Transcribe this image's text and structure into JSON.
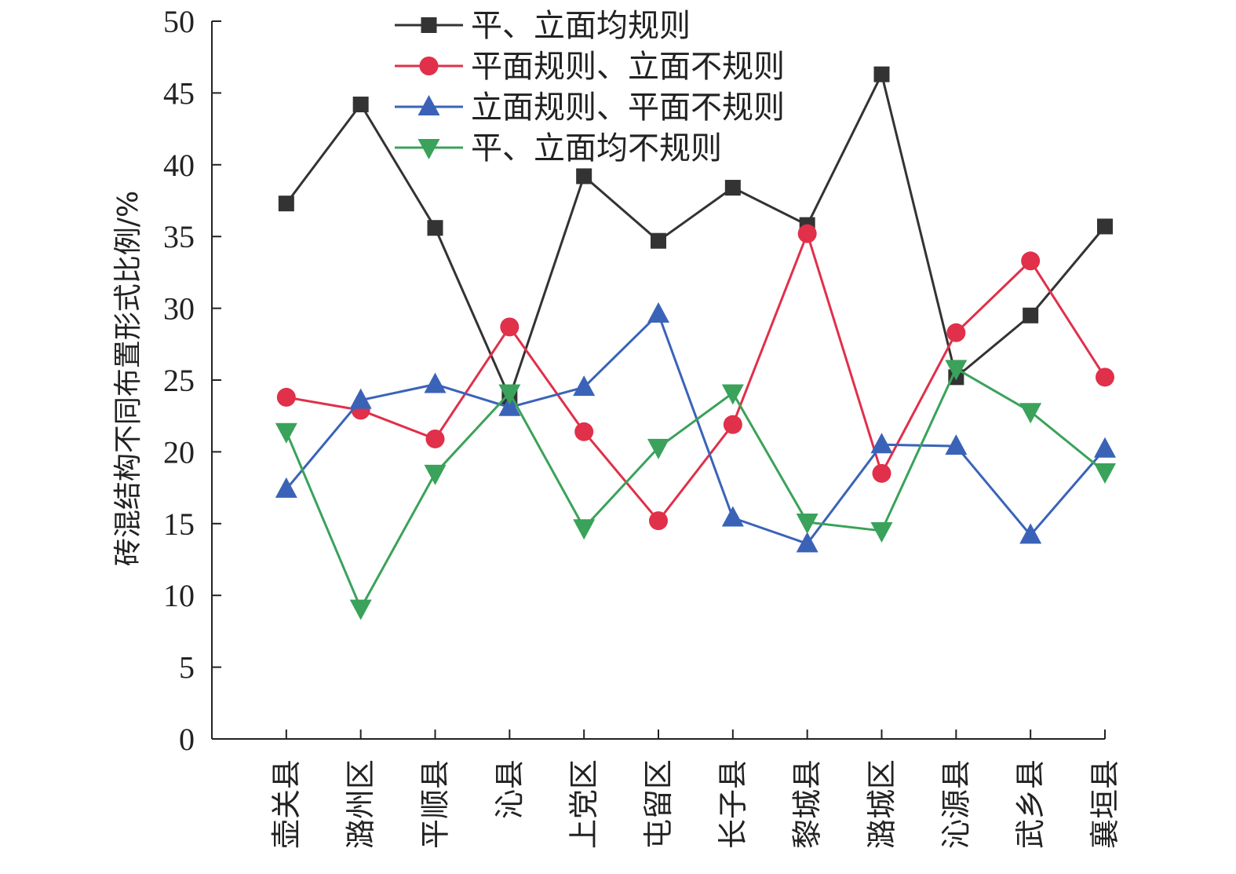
{
  "chart_data": {
    "type": "line",
    "title": "",
    "xlabel": "",
    "ylabel": "砖混结构不同布置形式比例/%",
    "ylim": [
      0,
      50
    ],
    "yticks": [
      "0",
      "5",
      "10",
      "15",
      "20",
      "25",
      "30",
      "35",
      "40",
      "45",
      "50"
    ],
    "categories": [
      "壶关县",
      "潞州区",
      "平顺县",
      "沁县",
      "上党区",
      "屯留区",
      "长子县",
      "黎城县",
      "潞城区",
      "沁源县",
      "武乡县",
      "襄垣县"
    ],
    "legend_position": "top-center",
    "grid": false,
    "series": [
      {
        "name": "平、立面均规则",
        "color": "#333333",
        "marker": "square",
        "values": [
          37.3,
          44.2,
          35.6,
          23.8,
          39.2,
          34.7,
          38.4,
          35.8,
          46.3,
          25.2,
          29.5,
          35.7
        ]
      },
      {
        "name": "平面规则、立面不规则",
        "color": "#e0304a",
        "marker": "circle",
        "values": [
          23.8,
          22.9,
          20.9,
          28.7,
          21.4,
          15.2,
          21.9,
          35.2,
          18.5,
          28.3,
          33.3,
          25.2
        ]
      },
      {
        "name": "立面规则、平面不规则",
        "color": "#3a63b8",
        "marker": "triangle-up",
        "values": [
          17.4,
          23.6,
          24.7,
          23.1,
          24.5,
          29.6,
          15.4,
          13.6,
          20.5,
          20.4,
          14.2,
          20.2
        ]
      },
      {
        "name": "平、立面均不规则",
        "color": "#3aa25a",
        "marker": "triangle-down",
        "values": [
          21.4,
          9.1,
          18.5,
          24.1,
          14.7,
          20.3,
          24.1,
          15.1,
          14.5,
          25.8,
          22.8,
          18.6
        ]
      }
    ]
  }
}
